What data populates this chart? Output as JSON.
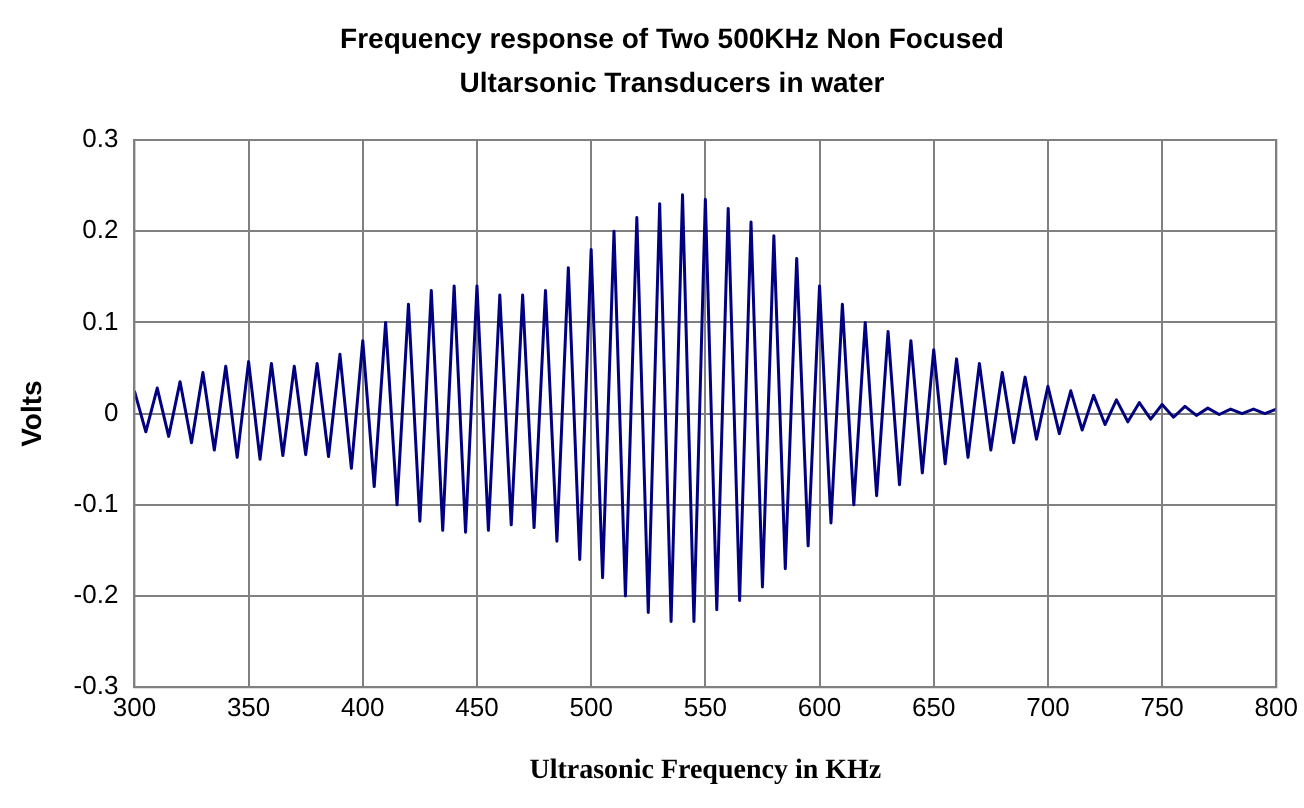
{
  "chart_data": {
    "type": "line",
    "title": "Frequency response of Two 500KHz Non Focused Ultarsonic Transducers in water",
    "xlabel": "Ultrasonic Frequency in KHz",
    "ylabel": "Volts",
    "x": [
      300,
      305,
      310,
      315,
      320,
      325,
      330,
      335,
      340,
      345,
      350,
      355,
      360,
      365,
      370,
      375,
      380,
      385,
      390,
      395,
      400,
      405,
      410,
      415,
      420,
      425,
      430,
      435,
      440,
      445,
      450,
      455,
      460,
      465,
      470,
      475,
      480,
      485,
      490,
      495,
      500,
      505,
      510,
      515,
      520,
      525,
      530,
      535,
      540,
      545,
      550,
      555,
      560,
      565,
      570,
      575,
      580,
      585,
      590,
      595,
      600,
      605,
      610,
      615,
      620,
      625,
      630,
      635,
      640,
      645,
      650,
      655,
      660,
      665,
      670,
      675,
      680,
      685,
      690,
      695,
      700,
      705,
      710,
      715,
      720,
      725,
      730,
      735,
      740,
      745,
      750,
      755,
      760,
      765,
      770,
      775,
      780,
      785,
      790,
      795,
      800
    ],
    "series": [
      {
        "color": "#000080",
        "values": [
          0.025,
          -0.02,
          0.028,
          -0.025,
          0.035,
          -0.032,
          0.045,
          -0.04,
          0.052,
          -0.048,
          0.057,
          -0.05,
          0.055,
          -0.046,
          0.052,
          -0.045,
          0.055,
          -0.047,
          0.065,
          -0.06,
          0.08,
          -0.08,
          0.1,
          -0.1,
          0.12,
          -0.118,
          0.135,
          -0.128,
          0.14,
          -0.13,
          0.14,
          -0.128,
          0.13,
          -0.122,
          0.13,
          -0.125,
          0.135,
          -0.14,
          0.16,
          -0.16,
          0.18,
          -0.18,
          0.2,
          -0.2,
          0.215,
          -0.218,
          0.23,
          -0.228,
          0.24,
          -0.228,
          0.235,
          -0.215,
          0.225,
          -0.205,
          0.21,
          -0.19,
          0.195,
          -0.17,
          0.17,
          -0.145,
          0.14,
          -0.12,
          0.12,
          -0.1,
          0.1,
          -0.09,
          0.09,
          -0.078,
          0.08,
          -0.065,
          0.07,
          -0.055,
          0.06,
          -0.048,
          0.055,
          -0.04,
          0.045,
          -0.032,
          0.04,
          -0.028,
          0.03,
          -0.022,
          0.025,
          -0.018,
          0.02,
          -0.012,
          0.015,
          -0.009,
          0.012,
          -0.006,
          0.01,
          -0.004,
          0.008,
          -0.002,
          0.006,
          -0.001,
          0.005,
          0,
          0.005,
          0,
          0.005
        ]
      }
    ],
    "xlim": [
      300,
      800
    ],
    "xticks": [
      300,
      350,
      400,
      450,
      500,
      550,
      600,
      650,
      700,
      750,
      800
    ],
    "ylim": [
      -0.3,
      0.3
    ],
    "yticks": [
      -0.3,
      -0.2,
      -0.1,
      0,
      0.1,
      0.2,
      0.3
    ],
    "grid": true,
    "legend": false,
    "marker": "none",
    "line_style": "solid"
  }
}
